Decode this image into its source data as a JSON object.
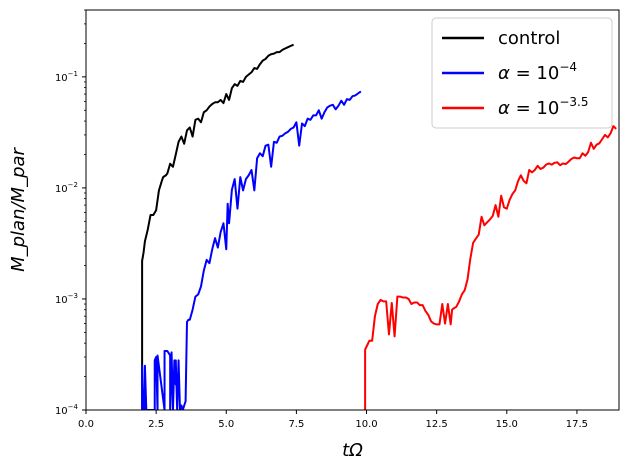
{
  "chart_data": {
    "type": "line",
    "title": "",
    "xlabel": "tΩ",
    "ylabel": "M_plan/M_par",
    "xlim": [
      0,
      19
    ],
    "ylim": [
      0.0001,
      0.4
    ],
    "yscale": "log",
    "grid": false,
    "legend_position": "top-right",
    "x_ticks": [
      0,
      2.5,
      5,
      7.5,
      10,
      12.5,
      15,
      17.5
    ],
    "x_tick_labels": [
      "0.0",
      "2.5",
      "5.0",
      "7.5",
      "10.0",
      "12.5",
      "15.0",
      "17.5"
    ],
    "y_ticks": [
      0.0001,
      0.001,
      0.01,
      0.1
    ],
    "y_tick_labels": [
      {
        "base": "10",
        "exp": "−4"
      },
      {
        "base": "10",
        "exp": "−3"
      },
      {
        "base": "10",
        "exp": "−2"
      },
      {
        "base": "10",
        "exp": "−1"
      }
    ],
    "series": [
      {
        "name": "control",
        "color": "#000000",
        "x": [
          2.0,
          2.0,
          2.05,
          2.1,
          2.2,
          2.3,
          2.4,
          2.5,
          2.6,
          2.7,
          2.75,
          2.85,
          2.9,
          3.0,
          3.1,
          3.2,
          3.3,
          3.4,
          3.5,
          3.6,
          3.7,
          3.8,
          3.9,
          4.0,
          4.1,
          4.2,
          4.3,
          4.4,
          4.5,
          4.6,
          4.7,
          4.8,
          4.9,
          5.0,
          5.1,
          5.2,
          5.3,
          5.4,
          5.5,
          5.6,
          5.7,
          5.8,
          5.9,
          6.0,
          6.1,
          6.2,
          6.3,
          6.4,
          6.5,
          6.6,
          6.7,
          6.8,
          6.9,
          7.0,
          7.1,
          7.2,
          7.3,
          7.4
        ],
        "y": [
          0.0001,
          0.0022,
          0.0026,
          0.0033,
          0.0042,
          0.0057,
          0.0057,
          0.0063,
          0.0095,
          0.0115,
          0.0125,
          0.013,
          0.0135,
          0.0165,
          0.0155,
          0.02,
          0.026,
          0.029,
          0.025,
          0.033,
          0.035,
          0.029,
          0.041,
          0.042,
          0.039,
          0.048,
          0.05,
          0.054,
          0.057,
          0.059,
          0.059,
          0.062,
          0.058,
          0.07,
          0.062,
          0.079,
          0.086,
          0.083,
          0.092,
          0.09,
          0.1,
          0.105,
          0.11,
          0.12,
          0.118,
          0.13,
          0.14,
          0.145,
          0.155,
          0.16,
          0.162,
          0.167,
          0.167,
          0.175,
          0.18,
          0.185,
          0.19,
          0.195
        ]
      },
      {
        "name": "α = 10^−4",
        "color": "#0000ff",
        "x": [
          2.0,
          2.0,
          2.05,
          2.1,
          2.1,
          2.15,
          2.2,
          2.45,
          2.45,
          2.5,
          2.55,
          2.55,
          2.8,
          2.8,
          2.9,
          3.0,
          3.0,
          3.05,
          3.1,
          3.15,
          3.2,
          3.2,
          3.25,
          3.3,
          3.35,
          3.4,
          3.45,
          3.55,
          3.6,
          3.65,
          3.7,
          3.8,
          3.9,
          4.0,
          4.1,
          4.2,
          4.3,
          4.4,
          4.5,
          4.6,
          4.7,
          4.8,
          4.9,
          5.0,
          5.05,
          5.1,
          5.2,
          5.3,
          5.4,
          5.5,
          5.6,
          5.7,
          5.8,
          5.9,
          6.0,
          6.1,
          6.2,
          6.3,
          6.4,
          6.5,
          6.6,
          6.7,
          6.8,
          6.9,
          7.0,
          7.1,
          7.2,
          7.3,
          7.4,
          7.5,
          7.6,
          7.7,
          7.8,
          7.9,
          8.0,
          8.1,
          8.2,
          8.3,
          8.4,
          8.5,
          8.6,
          8.7,
          8.8,
          8.9,
          9.0,
          9.1,
          9.2,
          9.3,
          9.4,
          9.5,
          9.6,
          9.7,
          9.8
        ],
        "y": [
          0.0001,
          0.00025,
          0.0001,
          0.0001,
          0.00025,
          0.0001,
          0.0001,
          0.0001,
          0.00028,
          0.0003,
          0.0001,
          0.00031,
          0.0001,
          0.00034,
          0.00034,
          0.00031,
          0.0001,
          0.00033,
          0.0001,
          0.00028,
          0.00017,
          0.00028,
          0.0001,
          0.00028,
          0.0001,
          0.00011,
          0.0001,
          0.00012,
          0.00062,
          0.00065,
          0.00065,
          0.0008,
          0.00105,
          0.0011,
          0.0013,
          0.0018,
          0.00225,
          0.0021,
          0.0028,
          0.00353,
          0.0029,
          0.004,
          0.0048,
          0.0028,
          0.0072,
          0.0048,
          0.0096,
          0.012,
          0.0065,
          0.0125,
          0.0095,
          0.012,
          0.013,
          0.0145,
          0.0095,
          0.0185,
          0.0205,
          0.0193,
          0.024,
          0.0245,
          0.0155,
          0.026,
          0.0255,
          0.029,
          0.0295,
          0.031,
          0.032,
          0.034,
          0.035,
          0.039,
          0.024,
          0.038,
          0.036,
          0.042,
          0.041,
          0.045,
          0.045,
          0.05,
          0.042,
          0.048,
          0.053,
          0.055,
          0.056,
          0.051,
          0.055,
          0.061,
          0.056,
          0.063,
          0.062,
          0.067,
          0.068,
          0.071,
          0.074
        ]
      },
      {
        "name": "α = 10^−3.5",
        "color": "#ff0000",
        "x": [
          9.95,
          9.95,
          10.1,
          10.2,
          10.3,
          10.4,
          10.5,
          10.6,
          10.7,
          10.8,
          10.9,
          11.0,
          11.1,
          11.2,
          11.3,
          11.4,
          11.5,
          11.6,
          11.7,
          11.8,
          11.9,
          12.0,
          12.1,
          12.2,
          12.3,
          12.4,
          12.5,
          12.6,
          12.7,
          12.8,
          12.9,
          13.0,
          13.05,
          13.1,
          13.2,
          13.3,
          13.4,
          13.5,
          13.6,
          13.7,
          13.8,
          13.9,
          14.0,
          14.1,
          14.2,
          14.3,
          14.4,
          14.5,
          14.6,
          14.7,
          14.8,
          14.9,
          15.0,
          15.1,
          15.2,
          15.3,
          15.4,
          15.5,
          15.6,
          15.7,
          15.8,
          15.9,
          16.0,
          16.1,
          16.2,
          16.3,
          16.4,
          16.5,
          16.6,
          16.7,
          16.8,
          16.9,
          17.0,
          17.1,
          17.2,
          17.3,
          17.4,
          17.5,
          17.6,
          17.7,
          17.8,
          17.9,
          18.0,
          18.1,
          18.2,
          18.3,
          18.4,
          18.5,
          18.6,
          18.7,
          18.8,
          18.9
        ],
        "y": [
          0.0001,
          0.00035,
          0.00042,
          0.00042,
          0.0007,
          0.0009,
          0.00098,
          0.00095,
          0.00095,
          0.00048,
          0.00092,
          0.00046,
          0.00105,
          0.00105,
          0.00103,
          0.00103,
          0.001,
          0.0009,
          0.00093,
          0.00093,
          0.00088,
          0.00088,
          0.00078,
          0.00072,
          0.00063,
          0.0006,
          0.00059,
          0.00059,
          0.0009,
          0.0006,
          0.0009,
          0.00059,
          0.0008,
          0.00082,
          0.00085,
          0.00095,
          0.0011,
          0.0012,
          0.0015,
          0.0023,
          0.0032,
          0.0035,
          0.0038,
          0.0055,
          0.0046,
          0.0049,
          0.0052,
          0.0056,
          0.007,
          0.0055,
          0.0085,
          0.0067,
          0.0065,
          0.0078,
          0.0088,
          0.0095,
          0.0115,
          0.013,
          0.0116,
          0.011,
          0.0145,
          0.0138,
          0.0145,
          0.0158,
          0.0148,
          0.0152,
          0.0162,
          0.0166,
          0.0162,
          0.0168,
          0.017,
          0.016,
          0.0166,
          0.0164,
          0.0172,
          0.0182,
          0.0188,
          0.0185,
          0.0185,
          0.0205,
          0.0195,
          0.021,
          0.0255,
          0.0225,
          0.0245,
          0.0252,
          0.0275,
          0.03,
          0.0285,
          0.031,
          0.036,
          0.034
        ]
      }
    ]
  }
}
